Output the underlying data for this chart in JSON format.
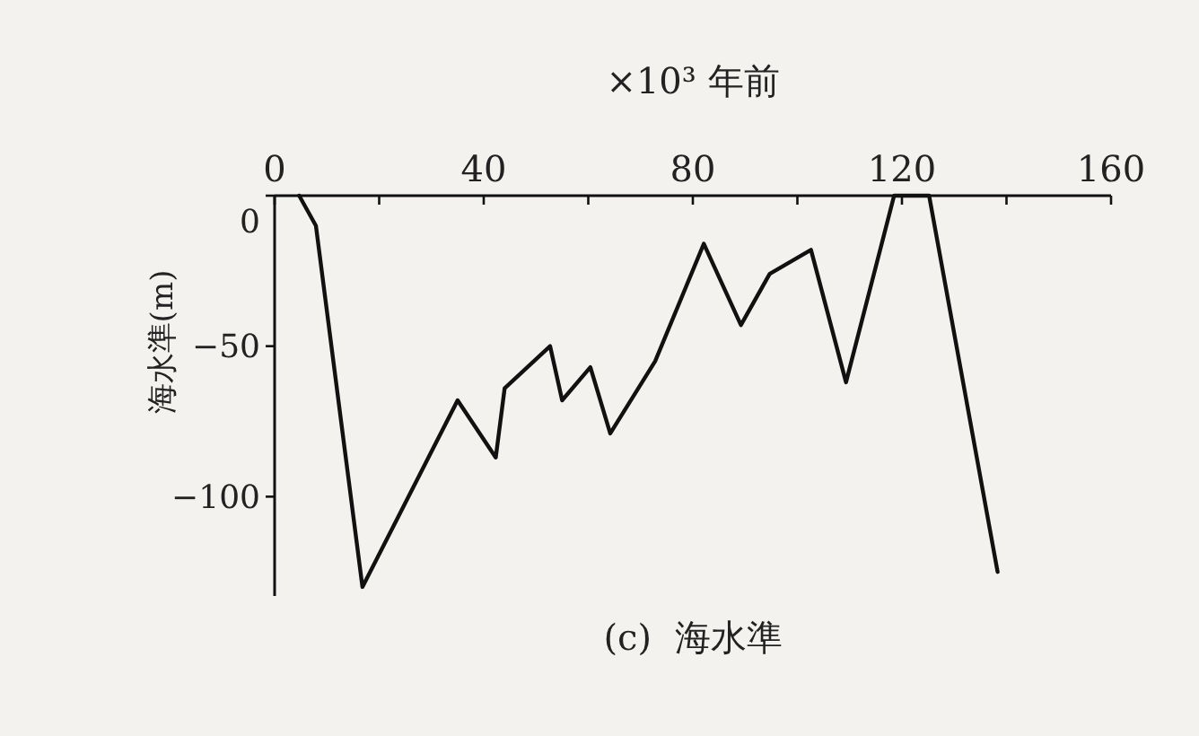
{
  "chart_data": {
    "type": "line",
    "xlabel": "×10³ 年前",
    "ylabel": "海水準(m)",
    "annotations": [
      "(c)  海水準"
    ],
    "x": [
      4.7,
      7.9,
      16.8,
      35,
      42.3,
      44,
      52.7,
      55,
      60.4,
      64.2,
      72.8,
      82.1,
      89.2,
      94.7,
      102.6,
      109.3,
      118.5,
      125.2,
      138.3
    ],
    "values": [
      0,
      -10,
      -130,
      -68,
      -87,
      -64,
      -50,
      -68,
      -57,
      -79,
      -55,
      -16,
      -43,
      -26,
      -18,
      -62,
      0,
      0,
      -125
    ],
    "color": "#111111",
    "xlim": [
      0,
      160
    ],
    "ylim": [
      -133,
      0
    ],
    "xticks": [
      0,
      {
        "value": 20,
        "label": null
      },
      40,
      {
        "value": 60,
        "label": null
      },
      80,
      {
        "value": 100,
        "label": null
      },
      120,
      {
        "value": 140,
        "label": null
      },
      160
    ],
    "yticks": [
      0,
      -50,
      -100
    ],
    "grid": false,
    "marker": "none",
    "line_style": "solid"
  }
}
